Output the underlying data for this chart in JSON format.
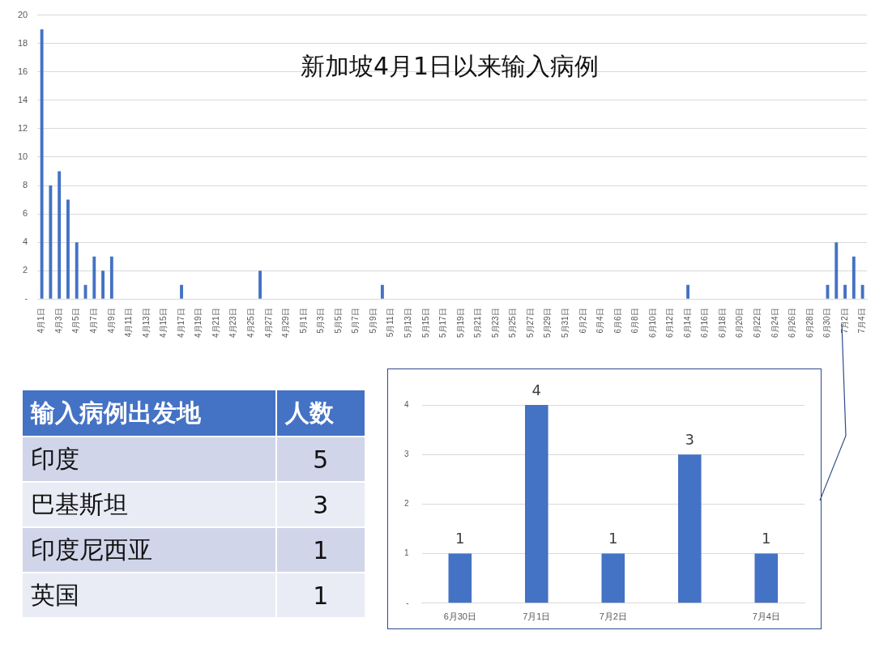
{
  "chart_data": [
    {
      "type": "bar",
      "title": "新加坡4月1日以来输入病例",
      "categories": [
        "4月1日",
        null,
        "4月3日",
        null,
        "4月5日",
        null,
        "4月7日",
        null,
        "4月9日",
        null,
        "4月11日",
        null,
        "4月13日",
        null,
        "4月15日",
        null,
        "4月17日",
        null,
        "4月19日",
        null,
        "4月21日",
        null,
        "4月23日",
        null,
        "4月25日",
        null,
        "4月27日",
        null,
        "4月29日",
        null,
        "5月1日",
        null,
        "5月3日",
        null,
        "5月5日",
        null,
        "5月7日",
        null,
        "5月9日",
        null,
        "5月11日",
        null,
        "5月13日",
        null,
        "5月15日",
        null,
        "5月17日",
        null,
        "5月19日",
        null,
        "5月21日",
        null,
        "5月23日",
        null,
        "5月25日",
        null,
        "5月27日",
        null,
        "5月29日",
        null,
        "5月31日",
        null,
        "6月2日",
        null,
        "6月4日",
        null,
        "6月6日",
        null,
        "6月8日",
        null,
        "6月10日",
        null,
        "6月12日",
        null,
        "6月14日",
        null,
        "6月16日",
        null,
        "6月18日",
        null,
        "6月20日",
        null,
        "6月22日",
        null,
        "6月24日",
        null,
        "6月26日",
        null,
        "6月28日",
        null,
        "6月30日",
        null,
        "7月2日",
        null,
        "7月4日"
      ],
      "values": [
        19,
        8,
        9,
        7,
        4,
        1,
        3,
        2,
        3,
        0,
        0,
        0,
        0,
        0,
        0,
        0,
        1,
        0,
        0,
        0,
        0,
        0,
        0,
        0,
        0,
        2,
        0,
        0,
        0,
        0,
        0,
        0,
        0,
        0,
        0,
        0,
        0,
        0,
        0,
        1,
        0,
        0,
        0,
        0,
        0,
        0,
        0,
        0,
        0,
        0,
        0,
        0,
        0,
        0,
        0,
        0,
        0,
        0,
        0,
        0,
        0,
        0,
        0,
        0,
        0,
        0,
        0,
        0,
        0,
        0,
        0,
        0,
        0,
        0,
        1,
        0,
        0,
        0,
        0,
        0,
        0,
        0,
        0,
        0,
        0,
        0,
        0,
        0,
        0,
        0,
        1,
        4,
        1,
        3,
        1
      ],
      "color": "#4472c4",
      "ylim": [
        0,
        20
      ],
      "yticks": [
        {
          "value": 0,
          "label": "-"
        },
        2,
        4,
        6,
        8,
        10,
        12,
        14,
        16,
        18,
        20
      ],
      "grid": "y"
    },
    {
      "type": "other",
      "xlabel": "输入病例出发地",
      "ylabel": "人数",
      "categories": [
        "印度",
        "巴基斯坦",
        "印度尼西亚",
        "英国"
      ],
      "values": [
        5,
        3,
        1,
        1
      ],
      "data_labels": true
    },
    {
      "type": "bar",
      "categories": [
        "6月30日",
        "7月1日",
        "7月2日",
        null,
        "7月4日"
      ],
      "values": [
        1,
        4,
        1,
        3,
        1
      ],
      "color": "#4472c4",
      "ylim": [
        0,
        4
      ],
      "yticks": [
        {
          "value": 0,
          "label": "-"
        },
        1,
        2,
        3,
        4
      ],
      "grid": "y",
      "data_labels": true
    }
  ]
}
